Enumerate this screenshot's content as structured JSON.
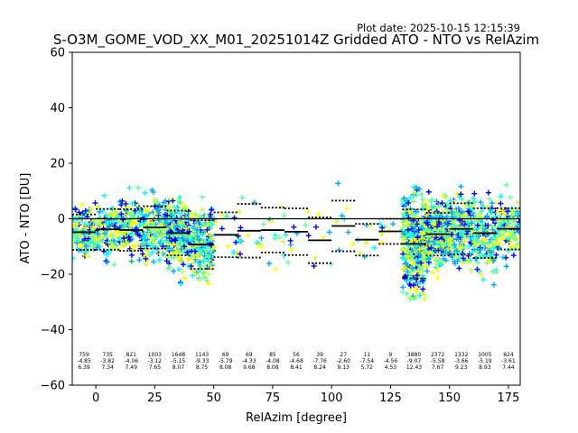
{
  "plot_date": "Plot date: 2025-10-15 12:15:39",
  "chart_data": {
    "type": "scatter",
    "title": "S-O3M_GOME_VOD_XX_M01_20251014Z Gridded ATO - NTO vs RelAzim",
    "xlabel": "RelAzim [degree]",
    "ylabel": "ATO - NTO [DU]",
    "xlim": [
      -10,
      180
    ],
    "ylim": [
      -60,
      60
    ],
    "xticks": [
      0,
      25,
      50,
      75,
      100,
      125,
      150,
      175
    ],
    "yticks": [
      -60,
      -40,
      -20,
      0,
      20,
      40,
      60
    ],
    "zero_line": 0,
    "marker": "+",
    "colormap": [
      "#0000ff",
      "#00aaff",
      "#00ffff",
      "#66ff99",
      "#ccff33",
      "#ffff00"
    ],
    "bins": [
      {
        "x": -5,
        "count": 759,
        "mean": -4.85,
        "std": 6.39
      },
      {
        "x": 5,
        "count": 735,
        "mean": -3.82,
        "std": 7.34
      },
      {
        "x": 15,
        "count": 821,
        "mean": -4.06,
        "std": 7.49
      },
      {
        "x": 25,
        "count": 1003,
        "mean": -3.12,
        "std": 7.65
      },
      {
        "x": 35,
        "count": 1648,
        "mean": -5.15,
        "std": 8.07
      },
      {
        "x": 45,
        "count": 1143,
        "mean": -9.33,
        "std": 8.75
      },
      {
        "x": 55,
        "count": 69,
        "mean": -5.79,
        "std": 8.08
      },
      {
        "x": 65,
        "count": 69,
        "mean": -4.33,
        "std": 9.68
      },
      {
        "x": 75,
        "count": 85,
        "mean": -4.08,
        "std": 8.08
      },
      {
        "x": 85,
        "count": 56,
        "mean": -4.68,
        "std": 8.41
      },
      {
        "x": 95,
        "count": 39,
        "mean": -7.76,
        "std": 8.24
      },
      {
        "x": 105,
        "count": 27,
        "mean": -2.6,
        "std": 9.13
      },
      {
        "x": 115,
        "count": 11,
        "mean": -7.54,
        "std": 5.72
      },
      {
        "x": 125,
        "count": 9,
        "mean": -4.56,
        "std": 4.53
      },
      {
        "x": 135,
        "count": 3880,
        "mean": -9.07,
        "std": 12.43
      },
      {
        "x": 145,
        "count": 2372,
        "mean": -5.58,
        "std": 7.67
      },
      {
        "x": 155,
        "count": 1332,
        "mean": -3.66,
        "std": 9.23
      },
      {
        "x": 165,
        "count": 1005,
        "mean": -5.19,
        "std": 8.93
      },
      {
        "x": 175,
        "count": 824,
        "mean": -3.61,
        "std": 7.44
      }
    ]
  }
}
